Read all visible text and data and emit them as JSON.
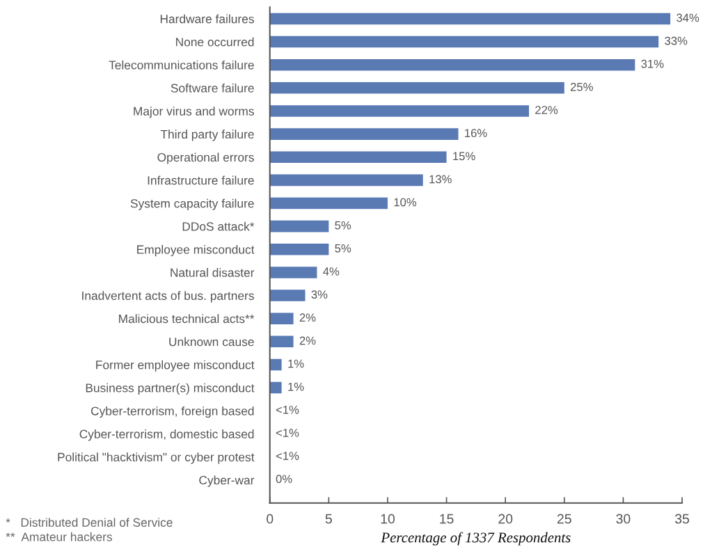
{
  "chart_data": {
    "type": "bar",
    "orientation": "horizontal",
    "categories": [
      "Hardware failures",
      "None occurred",
      "Telecommunications failure",
      "Software failure",
      "Major virus and worms",
      "Third party failure",
      "Operational errors",
      "Infrastructure failure",
      "System capacity failure",
      "DDoS attack*",
      "Employee misconduct",
      "Natural disaster",
      "Inadvertent acts of bus. partners",
      "Malicious technical acts**",
      "Unknown cause",
      "Former employee misconduct",
      "Business partner(s) misconduct",
      "Cyber-terrorism, foreign based",
      "Cyber-terrorism, domestic based",
      "Political \"hacktivism\" or cyber protest",
      "Cyber-war"
    ],
    "values": [
      34,
      33,
      31,
      25,
      22,
      16,
      15,
      13,
      10,
      5,
      5,
      4,
      3,
      2,
      2,
      1,
      1,
      null,
      null,
      null,
      0
    ],
    "value_labels": [
      "34%",
      "33%",
      "31%",
      "25%",
      "22%",
      "16%",
      "15%",
      "13%",
      "10%",
      "5%",
      "5%",
      "4%",
      "3%",
      "2%",
      "2%",
      "1%",
      "1%",
      "<1%",
      "<1%",
      "<1%",
      "0%"
    ],
    "color": "#5a7ab4",
    "xlim": [
      0,
      35
    ],
    "xticks": [
      0,
      5,
      10,
      15,
      20,
      25,
      30,
      35
    ],
    "xlabel": "Percentage of 1337 Respondents",
    "annotations": [
      "*   Distributed Denial of Service",
      "**  Amateur hackers"
    ]
  }
}
